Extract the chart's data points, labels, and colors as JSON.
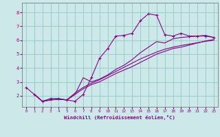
{
  "xlabel": "Windchill (Refroidissement éolien,°C)",
  "bg_color": "#cce8e8",
  "line_color": "#880088",
  "grid_color": "#99cccc",
  "xlim": [
    -0.5,
    23.5
  ],
  "ylim": [
    1.2,
    8.7
  ],
  "xticks": [
    0,
    1,
    2,
    3,
    4,
    5,
    6,
    7,
    8,
    9,
    10,
    11,
    12,
    13,
    14,
    15,
    16,
    17,
    18,
    19,
    20,
    21,
    22,
    23
  ],
  "yticks": [
    2,
    3,
    4,
    5,
    6,
    7,
    8
  ],
  "lines": [
    {
      "x": [
        0,
        1,
        2,
        3,
        4,
        5,
        6,
        7,
        8,
        9,
        10,
        11,
        12,
        13,
        14,
        15,
        16,
        17,
        18,
        19,
        20,
        21,
        22,
        23
      ],
      "y": [
        2.6,
        2.1,
        1.6,
        1.8,
        1.8,
        1.7,
        1.6,
        2.1,
        3.3,
        4.7,
        5.4,
        6.3,
        6.35,
        6.5,
        7.4,
        7.9,
        7.8,
        6.4,
        6.3,
        6.5,
        6.3,
        6.3,
        6.3,
        6.2
      ],
      "marker": true
    },
    {
      "x": [
        1,
        2,
        3,
        4,
        5,
        6,
        7,
        8,
        9,
        10,
        11,
        12,
        13,
        14,
        15,
        16,
        17,
        18,
        19,
        20,
        21,
        22,
        23
      ],
      "y": [
        2.1,
        1.6,
        1.7,
        1.75,
        1.7,
        2.1,
        3.3,
        3.0,
        3.2,
        3.5,
        3.9,
        4.2,
        4.6,
        5.1,
        5.5,
        5.9,
        5.8,
        6.1,
        6.2,
        6.25,
        6.3,
        6.35,
        6.2
      ],
      "marker": false
    },
    {
      "x": [
        1,
        2,
        3,
        4,
        5,
        6,
        7,
        8,
        9,
        10,
        11,
        12,
        13,
        14,
        15,
        16,
        17,
        18,
        19,
        20,
        21,
        22,
        23
      ],
      "y": [
        2.1,
        1.6,
        1.7,
        1.75,
        1.7,
        2.1,
        2.5,
        2.8,
        3.0,
        3.3,
        3.6,
        3.85,
        4.1,
        4.4,
        4.7,
        5.0,
        5.2,
        5.4,
        5.5,
        5.65,
        5.8,
        5.95,
        6.05
      ],
      "marker": false
    },
    {
      "x": [
        1,
        2,
        3,
        4,
        5,
        6,
        7,
        8,
        9,
        10,
        11,
        12,
        13,
        14,
        15,
        16,
        17,
        18,
        19,
        20,
        21,
        22,
        23
      ],
      "y": [
        2.1,
        1.6,
        1.7,
        1.75,
        1.7,
        2.2,
        2.6,
        2.9,
        3.15,
        3.45,
        3.75,
        4.05,
        4.35,
        4.65,
        4.9,
        5.15,
        5.35,
        5.5,
        5.62,
        5.72,
        5.82,
        5.92,
        6.0
      ],
      "marker": false
    }
  ]
}
